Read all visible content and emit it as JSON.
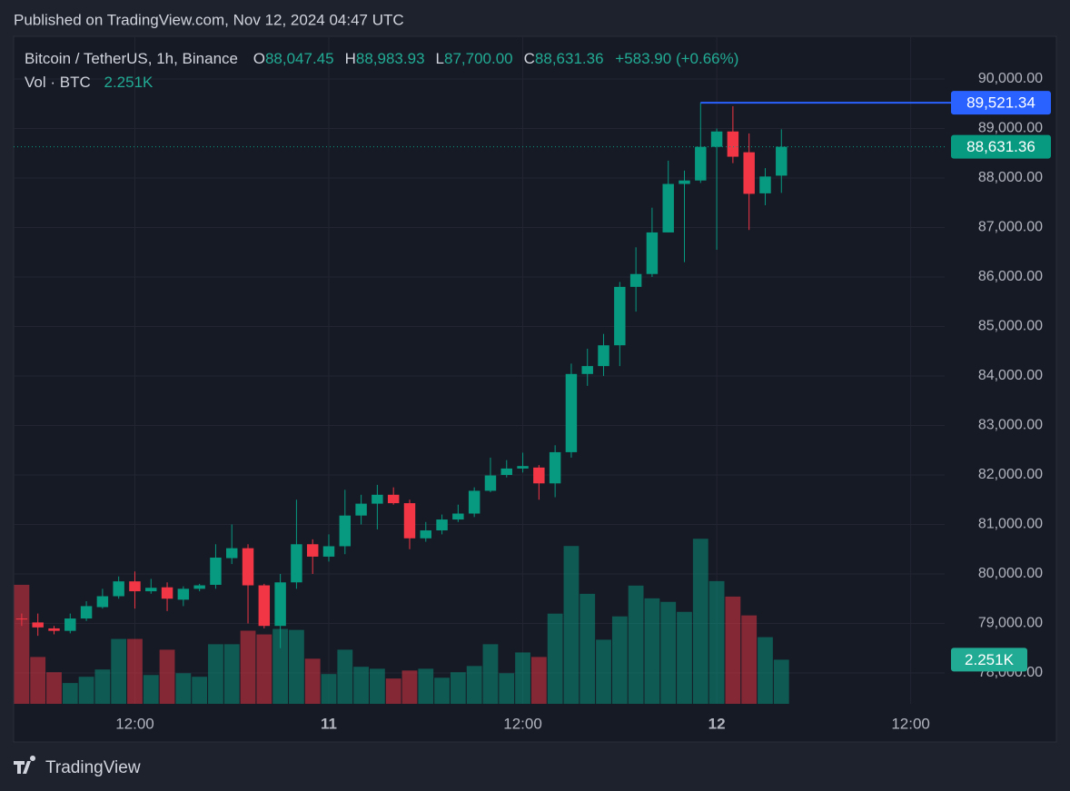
{
  "published": "Published on TradingView.com, Nov 12, 2024 04:47 UTC",
  "brand": "TradingView",
  "header": {
    "symbol": "Bitcoin / TetherUS, 1h, Binance",
    "fields": [
      {
        "key": "O",
        "value": "88,047.45"
      },
      {
        "key": "H",
        "value": "88,983.93"
      },
      {
        "key": "L",
        "value": "87,700.00"
      },
      {
        "key": "C",
        "value": "88,631.36"
      }
    ],
    "change": "+583.90 (+0.66%)",
    "volume_label": "Vol · BTC",
    "volume_value": "2.251K"
  },
  "chart_data": {
    "type": "candlestick",
    "x": [
      5,
      6,
      7,
      8,
      9,
      10,
      11,
      12,
      13,
      14,
      15,
      16,
      17,
      18,
      19,
      20,
      21,
      22,
      23,
      24,
      25,
      26,
      27,
      28,
      29,
      30,
      31,
      32,
      33,
      34,
      35,
      36,
      37,
      38,
      39,
      40,
      41,
      42,
      43,
      44,
      45,
      46,
      47,
      48,
      49,
      50,
      51,
      52
    ],
    "open": [
      79100,
      79020,
      78900,
      78850,
      79100,
      79330,
      79550,
      79850,
      79650,
      79730,
      79480,
      79700,
      79780,
      80320,
      80520,
      79770,
      78950,
      79830,
      80600,
      80350,
      80560,
      81180,
      81420,
      81600,
      81430,
      80720,
      80880,
      81100,
      81220,
      81680,
      82000,
      82130,
      82150,
      81830,
      82460,
      84040,
      84200,
      84620,
      85800,
      86060,
      86900,
      87880,
      87950,
      88630,
      88940,
      88520,
      87690,
      88047.45
    ],
    "high": [
      79200,
      79200,
      78950,
      79200,
      79450,
      79700,
      79950,
      80050,
      79900,
      79830,
      79750,
      79800,
      80600,
      81000,
      80600,
      79800,
      80000,
      81500,
      80700,
      80800,
      81700,
      81600,
      81800,
      81750,
      81500,
      81050,
      81200,
      81400,
      81750,
      82350,
      82300,
      82450,
      82200,
      82600,
      84250,
      84550,
      84850,
      85900,
      86600,
      87400,
      88350,
      88150,
      89520,
      89000,
      89450,
      88900,
      88200,
      88983.93
    ],
    "low": [
      78950,
      78750,
      78780,
      78800,
      79050,
      79300,
      79500,
      79300,
      79600,
      79250,
      79350,
      79650,
      79700,
      80200,
      79000,
      78900,
      78500,
      79700,
      80000,
      80250,
      80400,
      81000,
      80900,
      81400,
      80500,
      80650,
      80800,
      81050,
      81150,
      81650,
      81950,
      82050,
      81500,
      81550,
      82350,
      83800,
      84000,
      84200,
      85300,
      86000,
      86900,
      86300,
      87900,
      86550,
      88300,
      86950,
      87450,
      87700.0
    ],
    "close": [
      79080,
      78920,
      78850,
      79100,
      79350,
      79550,
      79850,
      79650,
      79720,
      79500,
      79700,
      79770,
      80330,
      80520,
      79770,
      78950,
      79830,
      80600,
      80350,
      80560,
      81180,
      81420,
      81600,
      81430,
      80720,
      80880,
      81100,
      81220,
      81680,
      81990,
      82130,
      82180,
      81830,
      82460,
      84040,
      84200,
      84620,
      85800,
      86060,
      86900,
      87880,
      87950,
      88630,
      88940,
      88430,
      87680,
      88030,
      88631.36
    ],
    "volume": [
      6070,
      2390,
      1610,
      1060,
      1380,
      1750,
      3310,
      3310,
      1470,
      2760,
      1560,
      1380,
      3040,
      3040,
      3730,
      3540,
      3820,
      3770,
      2300,
      1520,
      2760,
      1890,
      1790,
      1290,
      1700,
      1790,
      1330,
      1610,
      1930,
      3040,
      1560,
      2620,
      2390,
      4600,
      8050,
      5610,
      3270,
      4460,
      6030,
      5380,
      5200,
      4690,
      8420,
      6260,
      5470,
      4510,
      3400,
      2251
    ],
    "xlim": [
      4.5,
      62.1
    ],
    "xticks": [
      {
        "value": 12,
        "label": "12:00"
      },
      {
        "value": 24,
        "label": "11"
      },
      {
        "value": 36,
        "label": "12:00"
      },
      {
        "value": 48,
        "label": "12"
      },
      {
        "value": 60,
        "label": "12:00"
      }
    ],
    "ylim": [
      77376,
      90844
    ],
    "yticks": [
      {
        "value": 78000,
        "label": "78,000.00"
      },
      {
        "value": 79000,
        "label": "79,000.00"
      },
      {
        "value": 80000,
        "label": "80,000.00"
      },
      {
        "value": 81000,
        "label": "81,000.00"
      },
      {
        "value": 82000,
        "label": "82,000.00"
      },
      {
        "value": 83000,
        "label": "83,000.00"
      },
      {
        "value": 84000,
        "label": "84,000.00"
      },
      {
        "value": 85000,
        "label": "85,000.00"
      },
      {
        "value": 86000,
        "label": "86,000.00"
      },
      {
        "value": 87000,
        "label": "87,000.00"
      },
      {
        "value": 88000,
        "label": "88,000.00"
      },
      {
        "value": 89000,
        "label": "89,000.00"
      },
      {
        "value": 90000,
        "label": "90,000.00"
      }
    ],
    "volume_lim": [
      0,
      34000
    ],
    "grid": true,
    "up_color": "#089981",
    "down_color": "#f23645",
    "volume_opacity": 0.5,
    "hline": {
      "value": 89521.34,
      "label": "89,521.34",
      "x_start": 47,
      "color": "#2962ff"
    },
    "last_price": {
      "value": 88631.36,
      "label": "88,631.36"
    }
  }
}
